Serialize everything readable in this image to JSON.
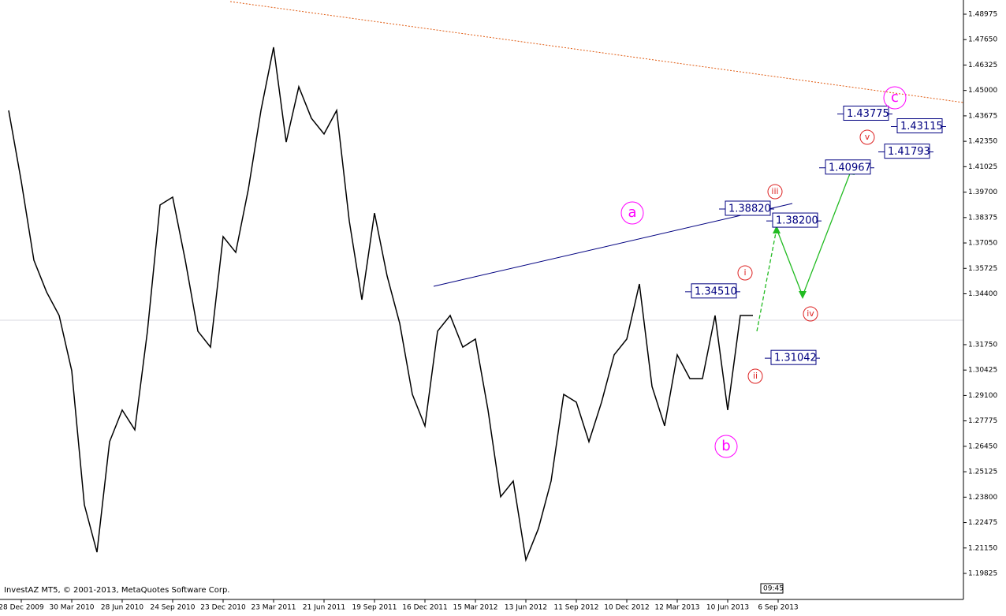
{
  "chart_data": {
    "type": "line",
    "categories": [
      null,
      "28 Dec 2009",
      null,
      null,
      null,
      "30 Mar 2010",
      null,
      null,
      null,
      "28 Jun 2010",
      null,
      null,
      null,
      "24 Sep 2010",
      null,
      null,
      null,
      "23 Dec 2010",
      null,
      null,
      null,
      "23 Mar 2011",
      null,
      null,
      null,
      "21 Jun 2011",
      null,
      null,
      null,
      "19 Sep 2011",
      null,
      null,
      null,
      "16 Dec 2011",
      null,
      null,
      null,
      "15 Mar 2012",
      null,
      null,
      null,
      "13 Jun 2012",
      null,
      null,
      null,
      "11 Sep 2012",
      null,
      null,
      null,
      "10 Dec 2012",
      null,
      null,
      null,
      "12 Mar 2013",
      null,
      null,
      null,
      "10 Jun 2013",
      null,
      null,
      null,
      "6 Sep 2013"
    ],
    "series": [
      {
        "color": "#000000",
        "values": [
          1.4396,
          1.4026,
          1.3615,
          1.345,
          1.3327,
          1.3039,
          1.234,
          1.2093,
          1.2669,
          1.2834,
          1.2731,
          1.3245,
          1.3903,
          1.3944,
          1.3615,
          1.3245,
          1.3162,
          1.3738,
          1.3656,
          1.3985,
          1.4396,
          1.4725,
          1.4231,
          1.4519,
          1.4355,
          1.4273,
          1.4396,
          1.382,
          1.3409,
          1.3861,
          1.3533,
          1.3286,
          1.2916,
          1.2751,
          1.3245,
          1.3327,
          1.3162,
          1.3204,
          1.2834,
          1.2382,
          1.2464,
          1.2053,
          1.2217,
          1.2464,
          1.2916,
          1.2875,
          1.2669,
          1.2875,
          1.3122,
          1.3204,
          1.3491,
          1.2957,
          1.2752,
          1.3122,
          1.2998,
          1.2998,
          1.3327,
          1.2834,
          1.3327,
          1.3327,
          null,
          null
        ]
      }
    ],
    "ylim": [
      1.18468,
      1.49715
    ],
    "yticks": [
      1.48975,
      {
        "value": 1.4765,
        "label": "1.47650"
      },
      1.46325,
      {
        "value": 1.45,
        "label": "1.45000"
      },
      1.43675,
      {
        "value": 1.4235,
        "label": "1.42350"
      },
      1.41025,
      {
        "value": 1.397,
        "label": "1.39700"
      },
      1.38375,
      {
        "value": 1.3705,
        "label": "1.37050"
      },
      1.35725,
      {
        "value": 1.344,
        "label": "1.34400"
      },
      {
        "value": 1.3175,
        "label": "1.31750"
      },
      1.30425,
      {
        "value": 1.291,
        "label": "1.29100"
      },
      1.27775,
      {
        "value": 1.2645,
        "label": "1.26450"
      },
      1.25125,
      {
        "value": 1.238,
        "label": "1.23800"
      },
      1.22475,
      {
        "value": 1.2115,
        "label": "1.21150"
      },
      1.19825
    ],
    "levels": [
      {
        "value": 1.3882,
        "label": "1.38820"
      },
      {
        "value": 1.382,
        "label": "1.38200"
      },
      {
        "value": 1.3451,
        "label": "1.34510"
      },
      {
        "value": 1.31042,
        "label": "1.31042"
      },
      {
        "value": 1.43775,
        "label": "1.43775"
      },
      {
        "value": 1.43115,
        "label": "1.43115"
      },
      {
        "value": 1.41793,
        "label": "1.41793"
      },
      {
        "value": 1.40967,
        "label": "1.40967"
      }
    ],
    "wave_labels": [
      "a",
      "b",
      "c",
      "i",
      "ii",
      "iii",
      "iv",
      "v"
    ],
    "footer_text": "InvestAZ MT5, © 2001-2013, MetaQuotes Software Corp.",
    "time_label": "09:45"
  }
}
